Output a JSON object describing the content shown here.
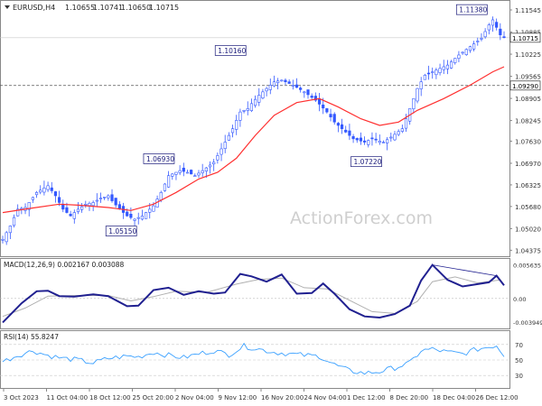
{
  "chart_data": [
    {
      "type": "candlestick",
      "panel": "price",
      "header": {
        "symbol": "EURUSD,H4",
        "ohlc": [
          "1.10655",
          "1.10741",
          "1.10650",
          "1.10715"
        ]
      },
      "y_ticks": [
        "1.11545",
        "1.10885",
        "1.10225",
        "1.09565",
        "1.08905",
        "1.08245",
        "1.07630",
        "1.06970",
        "1.06325",
        "1.05680",
        "1.05020",
        "1.04375"
      ],
      "ylim": [
        1.0425,
        1.1168
      ],
      "current_price": "1.10715",
      "marked_level": "1.09290",
      "peak_labels": [
        {
          "text": "1.11380",
          "value": 1.1138
        },
        {
          "text": "1.10160",
          "value": 1.1016
        },
        {
          "text": "1.07220",
          "value": 1.0722
        },
        {
          "text": "1.06930",
          "value": 1.0693
        },
        {
          "text": "1.05150",
          "value": 1.0515
        }
      ],
      "path_points": [
        [
          0,
          1.047
        ],
        [
          2,
          1.051
        ],
        [
          4,
          1.056
        ],
        [
          6,
          1.0565
        ],
        [
          9,
          1.061
        ],
        [
          12,
          1.063
        ],
        [
          14,
          1.06
        ],
        [
          16,
          1.056
        ],
        [
          18,
          1.054
        ],
        [
          20,
          1.056
        ],
        [
          22,
          1.0575
        ],
        [
          24,
          1.058
        ],
        [
          26,
          1.0593
        ],
        [
          28,
          1.06
        ],
        [
          29,
          1.0585
        ],
        [
          31,
          1.056
        ],
        [
          33,
          1.054
        ],
        [
          35,
          1.053
        ],
        [
          37,
          1.054
        ],
        [
          40,
          1.057
        ],
        [
          42,
          1.061
        ],
        [
          44,
          1.066
        ],
        [
          47,
          1.0675
        ],
        [
          49,
          1.067
        ],
        [
          51,
          1.066
        ],
        [
          53,
          1.0675
        ],
        [
          56,
          1.07
        ],
        [
          58,
          1.074
        ],
        [
          61,
          1.08
        ],
        [
          63,
          1.085
        ],
        [
          65,
          1.086
        ],
        [
          66,
          1.0875
        ],
        [
          68,
          1.09
        ],
        [
          70,
          1.092
        ],
        [
          72,
          1.094
        ],
        [
          74,
          1.0945
        ],
        [
          77,
          1.093
        ],
        [
          80,
          1.091
        ],
        [
          83,
          1.0885
        ],
        [
          86,
          1.085
        ],
        [
          88,
          1.082
        ],
        [
          91,
          1.079
        ],
        [
          93,
          1.077
        ],
        [
          96,
          1.076
        ],
        [
          98,
          1.077
        ],
        [
          101,
          1.076
        ],
        [
          103,
          1.0775
        ],
        [
          106,
          1.08
        ],
        [
          108,
          1.086
        ],
        [
          110,
          1.092
        ],
        [
          112,
          1.096
        ],
        [
          115,
          1.0975
        ],
        [
          118,
          1.099
        ],
        [
          121,
          1.102
        ],
        [
          124,
          1.1045
        ],
        [
          127,
          1.107
        ],
        [
          129,
          1.111
        ],
        [
          130,
          1.1125
        ],
        [
          132,
          1.108
        ],
        [
          133,
          1.1072
        ]
      ],
      "ma_points": [
        [
          0,
          1.055
        ],
        [
          7,
          1.0562
        ],
        [
          15,
          1.0575
        ],
        [
          20,
          1.0572
        ],
        [
          28,
          1.0565
        ],
        [
          34,
          1.0556
        ],
        [
          40,
          1.0575
        ],
        [
          46,
          1.061
        ],
        [
          52,
          1.065
        ],
        [
          57,
          1.067
        ],
        [
          62,
          1.0712
        ],
        [
          67,
          1.078
        ],
        [
          72,
          1.084
        ],
        [
          78,
          1.0878
        ],
        [
          84,
          1.089
        ],
        [
          89,
          1.0865
        ],
        [
          95,
          1.083
        ],
        [
          100,
          1.081
        ],
        [
          105,
          1.082
        ],
        [
          110,
          1.0855
        ],
        [
          117,
          1.089
        ],
        [
          124,
          1.093
        ],
        [
          130,
          1.097
        ],
        [
          133,
          1.0985
        ]
      ],
      "bars": 134
    },
    {
      "type": "line",
      "panel": "macd",
      "label": "MACD(12,26,9) 0.002167 0.003088",
      "y_ticks": [
        "0.005635",
        "0.00",
        "-0.003949"
      ],
      "ylim": [
        -0.0047,
        0.0063
      ],
      "macd_points": [
        [
          0,
          -0.004
        ],
        [
          5,
          -0.0008
        ],
        [
          9,
          0.0012
        ],
        [
          12,
          0.0013
        ],
        [
          15,
          0.0004
        ],
        [
          19,
          0.0003
        ],
        [
          24,
          0.0007
        ],
        [
          28,
          0.0004
        ],
        [
          33,
          -0.0013
        ],
        [
          36,
          -0.0012
        ],
        [
          40,
          0.0014
        ],
        [
          44,
          0.0018
        ],
        [
          48,
          0.0006
        ],
        [
          52,
          0.0012
        ],
        [
          56,
          0.0008
        ],
        [
          59,
          0.001
        ],
        [
          63,
          0.0041
        ],
        [
          66,
          0.0037
        ],
        [
          70,
          0.0028
        ],
        [
          74,
          0.004
        ],
        [
          78,
          0.0008
        ],
        [
          82,
          0.0009
        ],
        [
          85,
          0.0025
        ],
        [
          88,
          0.0008
        ],
        [
          92,
          -0.0018
        ],
        [
          96,
          -0.003
        ],
        [
          100,
          -0.0032
        ],
        [
          104,
          -0.0026
        ],
        [
          108,
          -0.0012
        ],
        [
          111,
          0.003
        ],
        [
          114,
          0.0056
        ],
        [
          118,
          0.0031
        ],
        [
          122,
          0.002
        ],
        [
          126,
          0.0024
        ],
        [
          129,
          0.0027
        ],
        [
          131,
          0.0038
        ],
        [
          133,
          0.0022
        ]
      ],
      "signal_points": [
        [
          0,
          -0.003
        ],
        [
          6,
          -0.0016
        ],
        [
          12,
          0.0004
        ],
        [
          20,
          0.0005
        ],
        [
          28,
          0.0005
        ],
        [
          34,
          -0.0004
        ],
        [
          40,
          0.0003
        ],
        [
          46,
          0.0012
        ],
        [
          54,
          0.001
        ],
        [
          62,
          0.0024
        ],
        [
          68,
          0.0032
        ],
        [
          74,
          0.0034
        ],
        [
          80,
          0.0018
        ],
        [
          86,
          0.0016
        ],
        [
          92,
          -0.0003
        ],
        [
          98,
          -0.0022
        ],
        [
          104,
          -0.0025
        ],
        [
          110,
          -0.0005
        ],
        [
          114,
          0.0028
        ],
        [
          120,
          0.0036
        ],
        [
          126,
          0.0026
        ],
        [
          132,
          0.0031
        ]
      ],
      "divergence_line": [
        [
          114,
          0.0056
        ],
        [
          131,
          0.0038
        ]
      ]
    },
    {
      "type": "line",
      "panel": "rsi",
      "label": "RSI(14) 55.8247",
      "y_ticks": [
        "70",
        "50",
        "30"
      ],
      "ylim": [
        15,
        85
      ],
      "rsi_points": [
        [
          0,
          48
        ],
        [
          4,
          56
        ],
        [
          8,
          62
        ],
        [
          12,
          56
        ],
        [
          16,
          52
        ],
        [
          20,
          50
        ],
        [
          24,
          46
        ],
        [
          28,
          52
        ],
        [
          33,
          55
        ],
        [
          36,
          54
        ],
        [
          40,
          60
        ],
        [
          44,
          56
        ],
        [
          48,
          53
        ],
        [
          52,
          58
        ],
        [
          56,
          62
        ],
        [
          60,
          57
        ],
        [
          64,
          68
        ],
        [
          68,
          64
        ],
        [
          72,
          60
        ],
        [
          76,
          58
        ],
        [
          80,
          56
        ],
        [
          84,
          55
        ],
        [
          88,
          44
        ],
        [
          92,
          36
        ],
        [
          96,
          33
        ],
        [
          100,
          35
        ],
        [
          104,
          40
        ],
        [
          108,
          46
        ],
        [
          111,
          62
        ],
        [
          114,
          64
        ],
        [
          118,
          60
        ],
        [
          122,
          58
        ],
        [
          126,
          64
        ],
        [
          129,
          67
        ],
        [
          131,
          69
        ],
        [
          133,
          56
        ]
      ]
    }
  ],
  "x_labels": [
    "3 Oct 2023",
    "11 Oct 04:00",
    "18 Oct 12:00",
    "25 Oct 20:00",
    "2 Nov 04:00",
    "9 Nov 12:00",
    "16 Nov 20:00",
    "24 Nov 04:00",
    "1 Dec 12:00",
    "8 Dec 20:00",
    "18 Dec 04:00",
    "26 Dec 12:00"
  ],
  "watermark": "ActionForex.com",
  "colors": {
    "candles": "#3358ff",
    "ma": "#ff3030",
    "macd": "#202090",
    "signal": "#b0b0b0",
    "rsi": "#3aa0ff",
    "axis": "#666666",
    "label_box_text": "#1a1a7a"
  }
}
